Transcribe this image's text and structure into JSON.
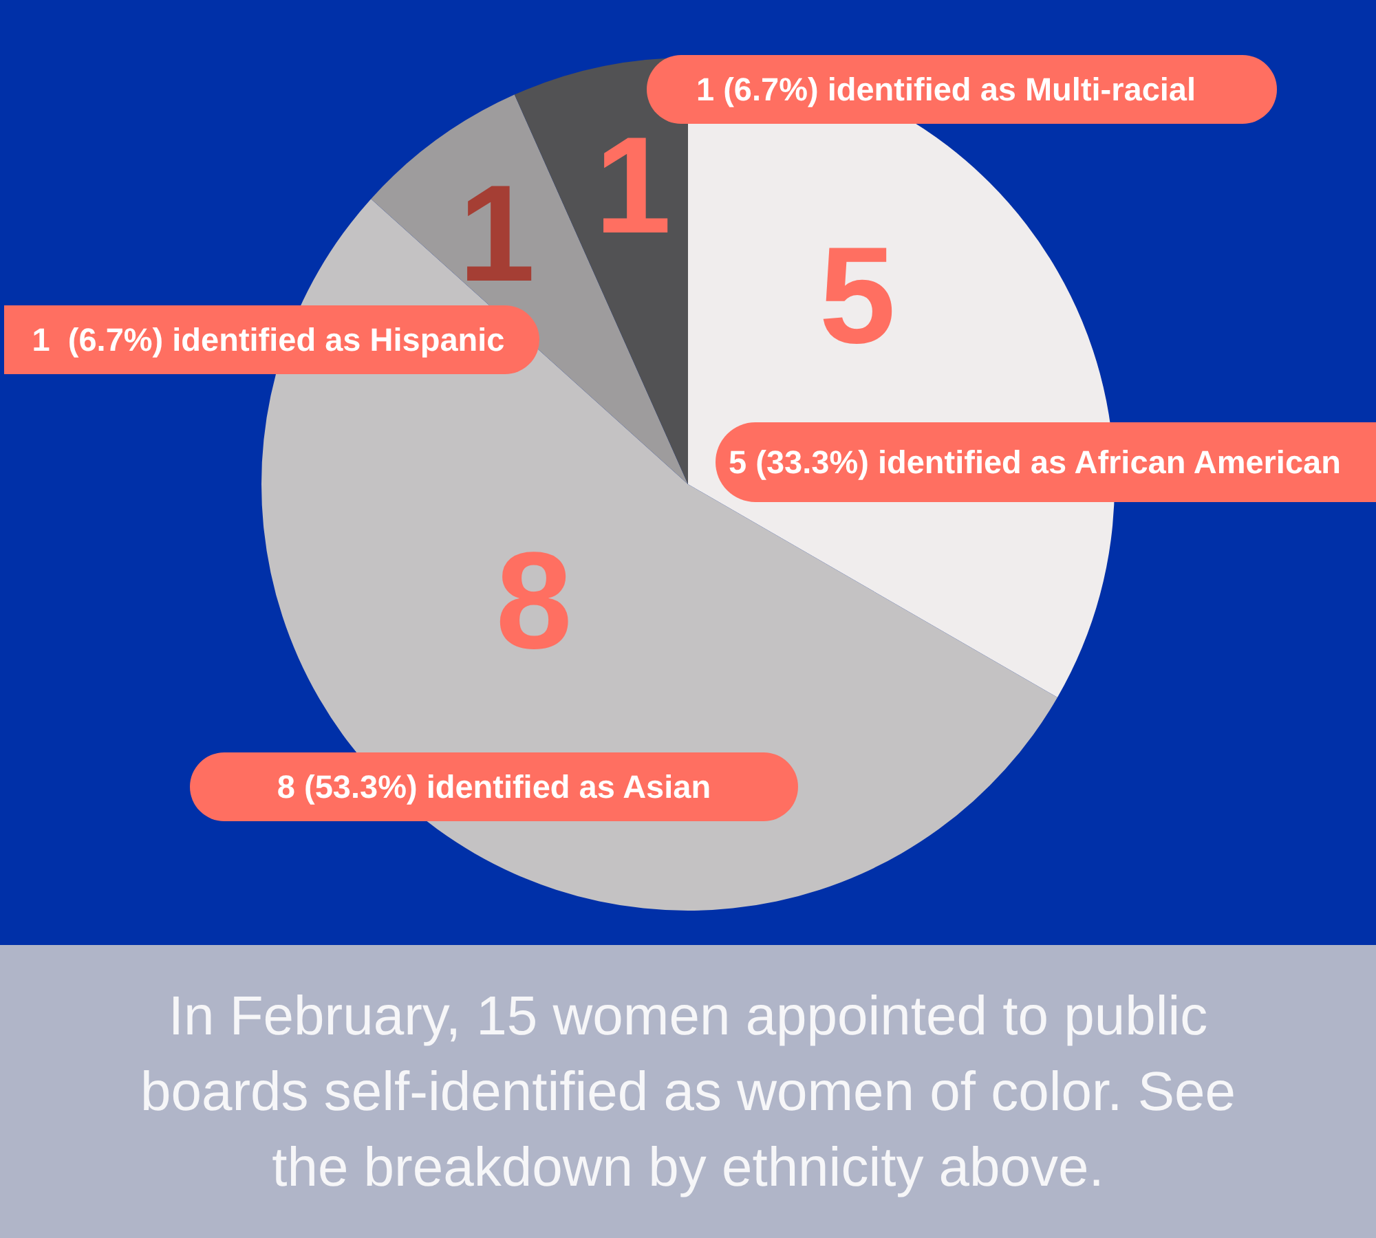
{
  "chart_data": {
    "type": "pie",
    "categories": [
      "5 (33.3%) identified as African American",
      "8 (53.3%) identified as Asian",
      "1  (6.7%) identified as Hispanic",
      "1 (6.7%) identified as Multi-racial"
    ],
    "values": [
      5,
      8,
      1,
      1
    ],
    "colors": [
      "#f0eded",
      "#c4c2c3",
      "#9e9c9d",
      "#525254"
    ],
    "data_labels": true,
    "annotations": [
      "In February, 15 women appointed to public boards self-identified as women of color. See the breakdown by ethnicity above."
    ]
  }
}
